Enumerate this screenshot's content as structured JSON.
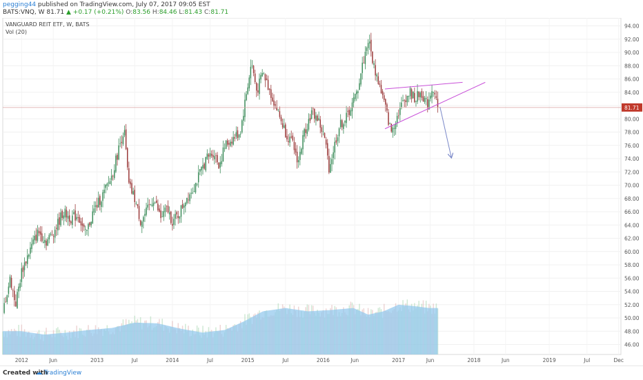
{
  "header": {
    "user": "pegging44",
    "published": "published on TradingView.com, July 07, 2017 09:05 EST",
    "symbol": "BATS:VNQ, W",
    "last": "81.71",
    "change_arrow": "▲",
    "change": "+0.17 (+0.21%)",
    "o_label": "O:",
    "o_value": "83.56",
    "h_label": "H:",
    "h_value": "84.46",
    "l_label": "L:",
    "l_value": "81.43",
    "c_label": "C:",
    "c_value": "81.71"
  },
  "chart_data": {
    "type": "candlestick",
    "legend": [
      "VANGUARD REIT ETF, W, BATS",
      "Vol (20)"
    ],
    "x_ticks": [
      "2012",
      "Jun",
      "2013",
      "Jul",
      "2014",
      "Jul",
      "2015",
      "Jul",
      "2016",
      "Jun",
      "2017",
      "Jun",
      "2018",
      "Jun",
      "2019",
      "Jul",
      "Dec"
    ],
    "y_ticks": [
      "94.00",
      "92.00",
      "90.00",
      "88.00",
      "86.00",
      "84.00",
      "82.00",
      "80.00",
      "78.00",
      "76.00",
      "74.00",
      "72.00",
      "70.00",
      "68.00",
      "66.00",
      "64.00",
      "62.00",
      "60.00",
      "58.00",
      "56.00",
      "54.00",
      "52.00",
      "50.00",
      "48.00",
      "46.00"
    ],
    "ylim": [
      44.5,
      95.2
    ],
    "last_price": 81.71,
    "last_price_label": "81.71",
    "price_anchors": [
      [
        2011.75,
        51
      ],
      [
        2011.85,
        56
      ],
      [
        2011.92,
        52
      ],
      [
        2012.0,
        57
      ],
      [
        2012.1,
        60
      ],
      [
        2012.22,
        63
      ],
      [
        2012.33,
        61.5
      ],
      [
        2012.45,
        63.5
      ],
      [
        2012.55,
        66
      ],
      [
        2012.65,
        65
      ],
      [
        2012.75,
        65.5
      ],
      [
        2012.85,
        62.5
      ],
      [
        2012.95,
        66
      ],
      [
        2013.1,
        69
      ],
      [
        2013.2,
        71.5
      ],
      [
        2013.3,
        76
      ],
      [
        2013.36,
        78.5
      ],
      [
        2013.42,
        70
      ],
      [
        2013.5,
        68
      ],
      [
        2013.58,
        64.5
      ],
      [
        2013.66,
        66
      ],
      [
        2013.75,
        68
      ],
      [
        2013.85,
        65
      ],
      [
        2013.93,
        66.5
      ],
      [
        2014.0,
        64.5
      ],
      [
        2014.08,
        65.5
      ],
      [
        2014.18,
        68
      ],
      [
        2014.3,
        70
      ],
      [
        2014.45,
        74
      ],
      [
        2014.55,
        75
      ],
      [
        2014.62,
        73
      ],
      [
        2014.7,
        76
      ],
      [
        2014.8,
        77
      ],
      [
        2014.9,
        78
      ],
      [
        2014.97,
        83
      ],
      [
        2015.05,
        88.5
      ],
      [
        2015.12,
        84
      ],
      [
        2015.2,
        87
      ],
      [
        2015.3,
        84
      ],
      [
        2015.4,
        81
      ],
      [
        2015.5,
        78
      ],
      [
        2015.6,
        76
      ],
      [
        2015.67,
        73.5
      ],
      [
        2015.75,
        78
      ],
      [
        2015.85,
        81
      ],
      [
        2015.93,
        80
      ],
      [
        2016.02,
        77
      ],
      [
        2016.08,
        72.5
      ],
      [
        2016.15,
        76
      ],
      [
        2016.22,
        79
      ],
      [
        2016.3,
        80
      ],
      [
        2016.38,
        82
      ],
      [
        2016.45,
        84
      ],
      [
        2016.52,
        88
      ],
      [
        2016.6,
        92
      ],
      [
        2016.67,
        88
      ],
      [
        2016.75,
        85
      ],
      [
        2016.82,
        82
      ],
      [
        2016.9,
        78
      ],
      [
        2017.0,
        81
      ],
      [
        2017.08,
        83
      ],
      [
        2017.15,
        84
      ],
      [
        2017.22,
        83
      ],
      [
        2017.3,
        84
      ],
      [
        2017.38,
        82
      ],
      [
        2017.45,
        85
      ],
      [
        2017.52,
        81.71
      ]
    ],
    "volume": [
      [
        2011.75,
        48
      ],
      [
        2012.0,
        48
      ],
      [
        2012.3,
        47.5
      ],
      [
        2012.6,
        47.8
      ],
      [
        2012.9,
        48.2
      ],
      [
        2013.2,
        48.5
      ],
      [
        2013.5,
        49.3
      ],
      [
        2013.8,
        49.2
      ],
      [
        2014.1,
        48.4
      ],
      [
        2014.4,
        47.8
      ],
      [
        2014.7,
        48.2
      ],
      [
        2014.95,
        49.5
      ],
      [
        2015.2,
        51
      ],
      [
        2015.5,
        51.5
      ],
      [
        2015.8,
        51
      ],
      [
        2016.1,
        51.2
      ],
      [
        2016.4,
        51.5
      ],
      [
        2016.6,
        50.5
      ],
      [
        2016.8,
        51
      ],
      [
        2017.0,
        52
      ],
      [
        2017.2,
        51.8
      ],
      [
        2017.4,
        51.5
      ],
      [
        2017.52,
        51.5
      ]
    ],
    "drawings": [
      {
        "type": "trendline",
        "from": [
          2016.82,
          84.5
        ],
        "to": [
          2017.85,
          85.5
        ],
        "color": "#c84fd8"
      },
      {
        "type": "trendline",
        "from": [
          2016.82,
          78.5
        ],
        "to": [
          2018.15,
          85.5
        ],
        "color": "#c84fd8"
      },
      {
        "type": "arrow",
        "from": [
          2017.55,
          81.8
        ],
        "to": [
          2017.7,
          74.2
        ],
        "color": "#7a88c8"
      }
    ],
    "colors": {
      "up": "#3c8c5a",
      "down": "#9b3a3a",
      "volume": "#8fc6ec",
      "volume_ma": "#7ab8e6",
      "price_line": "#d9a1a1",
      "price_label_bg": "#c0392b"
    }
  },
  "footer": {
    "created": "Created with",
    "brand": "TradingView"
  }
}
